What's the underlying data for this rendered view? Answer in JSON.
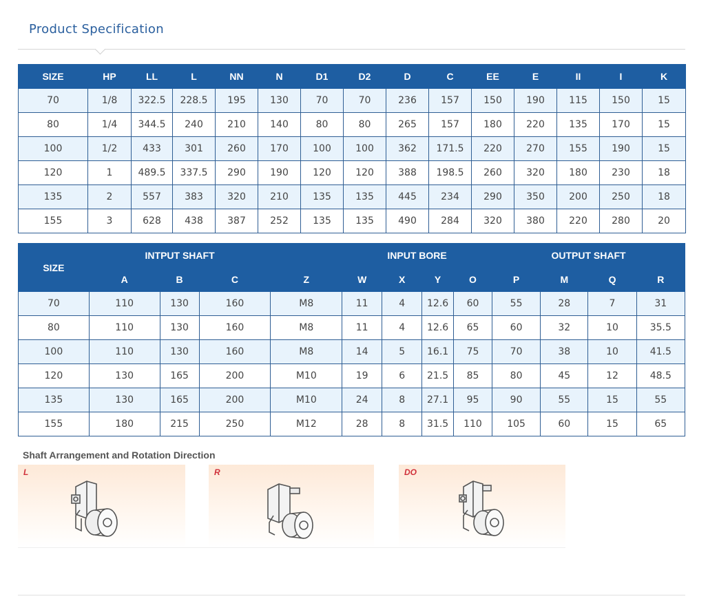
{
  "page": {
    "title": "Product Specification"
  },
  "table1": {
    "headers": [
      "SIZE",
      "HP",
      "LL",
      "L",
      "NN",
      "N",
      "D1",
      "D2",
      "D",
      "C",
      "EE",
      "E",
      "II",
      "I",
      "K"
    ],
    "rows": [
      [
        "70",
        "1/8",
        "322.5",
        "228.5",
        "195",
        "130",
        "70",
        "70",
        "236",
        "157",
        "150",
        "190",
        "115",
        "150",
        "15"
      ],
      [
        "80",
        "1/4",
        "344.5",
        "240",
        "210",
        "140",
        "80",
        "80",
        "265",
        "157",
        "180",
        "220",
        "135",
        "170",
        "15"
      ],
      [
        "100",
        "1/2",
        "433",
        "301",
        "260",
        "170",
        "100",
        "100",
        "362",
        "171.5",
        "220",
        "270",
        "155",
        "190",
        "15"
      ],
      [
        "120",
        "1",
        "489.5",
        "337.5",
        "290",
        "190",
        "120",
        "120",
        "388",
        "198.5",
        "260",
        "320",
        "180",
        "230",
        "18"
      ],
      [
        "135",
        "2",
        "557",
        "383",
        "320",
        "210",
        "135",
        "135",
        "445",
        "234",
        "290",
        "350",
        "200",
        "250",
        "18"
      ],
      [
        "155",
        "3",
        "628",
        "438",
        "387",
        "252",
        "135",
        "135",
        "490",
        "284",
        "320",
        "380",
        "220",
        "280",
        "20"
      ]
    ]
  },
  "table2": {
    "size_label": "SIZE",
    "groups": {
      "input_shaft": "INTPUT SHAFT",
      "input_bore": "INPUT BORE",
      "output_shaft": "OUTPUT SHAFT"
    },
    "headers": [
      "A",
      "B",
      "C",
      "Z",
      "W",
      "X",
      "Y",
      "O",
      "P",
      "M",
      "Q",
      "R"
    ],
    "rows": [
      [
        "70",
        "110",
        "130",
        "160",
        "M8",
        "11",
        "4",
        "12.6",
        "60",
        "55",
        "28",
        "7",
        "31"
      ],
      [
        "80",
        "110",
        "130",
        "160",
        "M8",
        "11",
        "4",
        "12.6",
        "65",
        "60",
        "32",
        "10",
        "35.5"
      ],
      [
        "100",
        "110",
        "130",
        "160",
        "M8",
        "14",
        "5",
        "16.1",
        "75",
        "70",
        "38",
        "10",
        "41.5"
      ],
      [
        "120",
        "130",
        "165",
        "200",
        "M10",
        "19",
        "6",
        "21.5",
        "85",
        "80",
        "45",
        "12",
        "48.5"
      ],
      [
        "135",
        "130",
        "165",
        "200",
        "M10",
        "24",
        "8",
        "27.1",
        "95",
        "90",
        "55",
        "15",
        "55"
      ],
      [
        "155",
        "180",
        "215",
        "250",
        "M12",
        "28",
        "8",
        "31.5",
        "110",
        "105",
        "60",
        "15",
        "65"
      ]
    ]
  },
  "arrangement": {
    "title": "Shaft Arrangement and Rotation Direction",
    "panels": [
      {
        "label": "L",
        "icon": "gearbox-left-icon"
      },
      {
        "label": "R",
        "icon": "gearbox-right-icon"
      },
      {
        "label": "DO",
        "icon": "gearbox-double-output-icon"
      }
    ]
  },
  "colors": {
    "header_bg": "#1e5ea2",
    "row_alt": "#e8f3fc",
    "title": "#2a5f9e",
    "panel_label": "#d0303a"
  }
}
